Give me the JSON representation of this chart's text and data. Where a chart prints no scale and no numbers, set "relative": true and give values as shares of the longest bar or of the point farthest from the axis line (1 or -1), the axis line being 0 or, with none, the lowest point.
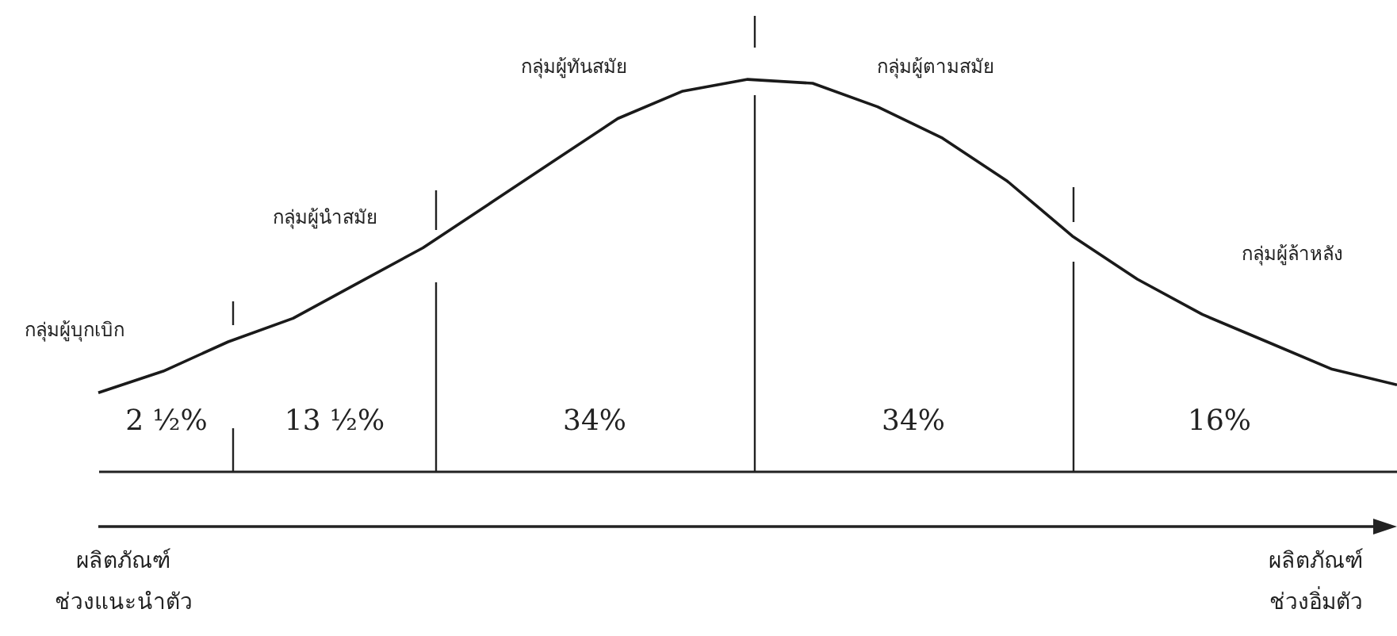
{
  "chart_data": {
    "type": "line",
    "relative": true,
    "color": "#1a1a1a",
    "line_style": "solid",
    "categories": [
      null,
      null,
      null,
      null,
      null,
      null,
      null,
      null,
      null,
      null,
      null,
      null,
      null,
      null,
      null,
      null,
      null,
      null,
      null,
      null,
      null
    ],
    "values": [
      0.2,
      0.255,
      0.33,
      0.39,
      0.48,
      0.57,
      0.68,
      0.79,
      0.9,
      0.97,
      1,
      0.99,
      0.93,
      0.85,
      0.74,
      0.6,
      0.49,
      0.4,
      0.33,
      0.26,
      0.22
    ],
    "annotations": [
      "กลุ่มผู้บุกเบิก",
      "กลุ่มผู้นำสมัย",
      "กลุ่มผู้ทันสมัย",
      "กลุ่มผู้ตามสมัย",
      "กลุ่มผู้ล้าหลัง",
      "2 ½%",
      "13 ½%",
      "34%",
      "34%",
      "16%",
      "ผลิตภัณฑ์\nช่วงแนะนำตัว",
      "ผลิตภัณฑ์\nช่วงอิ่มตัว"
    ]
  }
}
